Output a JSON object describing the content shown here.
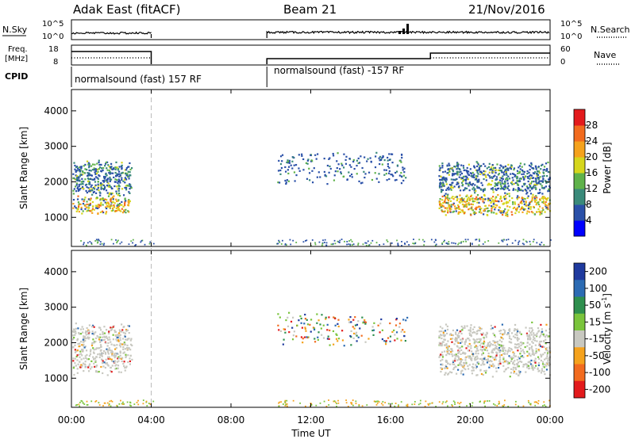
{
  "header": {
    "station": "Adak East (fitACF)",
    "beam": "Beam 21",
    "date": "21/Nov/2016"
  },
  "nsky_panel": {
    "left_label": "N.Sky",
    "left_ticks": [
      "10^5",
      "10^0"
    ],
    "right_label": "N.Search",
    "right_ticks": [
      "10^5",
      "10^0"
    ]
  },
  "freq_panel": {
    "left_label_line1": "Freq.",
    "left_label_line2": "[MHz]",
    "left_ticks": [
      "18",
      "8"
    ],
    "right_label": "Nave",
    "right_ticks": [
      "60",
      "0"
    ]
  },
  "cpid": {
    "label": "CPID",
    "segments": [
      {
        "text": "normalsound (fast) 157 RF",
        "start_hour": 0,
        "end_hour": 4
      },
      {
        "text": "normalsound (fast) -157 RF",
        "start_hour": 9.8,
        "end_hour": 24
      }
    ]
  },
  "x_axis": {
    "label": "Time UT",
    "ticks": [
      "00:00",
      "04:00",
      "08:00",
      "12:00",
      "16:00",
      "20:00",
      "00:00"
    ],
    "tick_hours": [
      0,
      4,
      8,
      12,
      16,
      20,
      24
    ],
    "range": [
      0,
      24
    ],
    "dashed_marker_hour": 4
  },
  "chart_data": [
    {
      "type": "heatmap",
      "title": "",
      "xlabel": "",
      "ylabel": "Slant Range [km]",
      "y_ticks": [
        1000,
        2000,
        3000,
        4000
      ],
      "ylim": [
        180,
        4600
      ],
      "colorbar": {
        "label": "Power [dB]",
        "ticks": [
          "4",
          "8",
          "12",
          "16",
          "20",
          "24",
          "28"
        ],
        "colors": [
          "#0000ff",
          "#2a50a8",
          "#3a8a7a",
          "#5fb24a",
          "#d6d61c",
          "#f5a21c",
          "#f26b1e",
          "#e31a1c"
        ]
      },
      "regions": [
        {
          "t0": 0.0,
          "t1": 2.9,
          "r0": 1100,
          "r1": 1650,
          "level": "high"
        },
        {
          "t0": 0.0,
          "t1": 3.0,
          "r0": 1600,
          "r1": 2650,
          "level": "mid"
        },
        {
          "t0": 10.3,
          "t1": 16.8,
          "r0": 1900,
          "r1": 2900,
          "level": "low"
        },
        {
          "t0": 18.4,
          "t1": 24.0,
          "r0": 1050,
          "r1": 1700,
          "level": "high"
        },
        {
          "t0": 18.4,
          "t1": 24.0,
          "r0": 1650,
          "r1": 2600,
          "level": "mid"
        }
      ]
    },
    {
      "type": "heatmap",
      "title": "",
      "xlabel": "Time UT",
      "ylabel": "Slant Range [km]",
      "y_ticks": [
        1000,
        2000,
        3000,
        4000
      ],
      "ylim": [
        180,
        4600
      ],
      "colorbar": {
        "label": "Velocity [m s^-1]",
        "ticks": [
          "200",
          "100",
          "50",
          "15",
          "-15",
          "-50",
          "-100",
          "-200"
        ],
        "colors": [
          "#1f3a9e",
          "#2c6bb3",
          "#2e8f4e",
          "#7ac43c",
          "#c8c8c0",
          "#f5a21c",
          "#f26b1e",
          "#e31a1c"
        ]
      },
      "regions": [
        {
          "t0": 0.0,
          "t1": 3.0,
          "r0": 1100,
          "r1": 2600,
          "level": "grey"
        },
        {
          "t0": 10.3,
          "t1": 16.8,
          "r0": 1900,
          "r1": 2900,
          "level": "mixed"
        },
        {
          "t0": 18.4,
          "t1": 24.0,
          "r0": 1050,
          "r1": 2600,
          "level": "grey"
        }
      ]
    }
  ]
}
